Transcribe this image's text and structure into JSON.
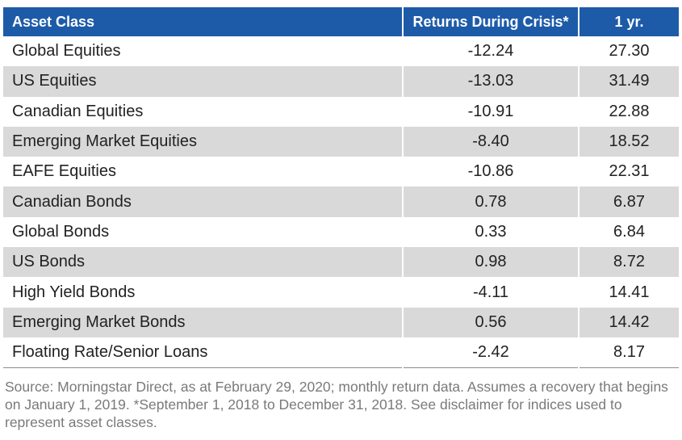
{
  "table": {
    "headers": [
      "Asset Class",
      "Returns During Crisis*",
      "1 yr."
    ],
    "rows": [
      [
        "Global Equities",
        "-12.24",
        "27.30"
      ],
      [
        "US Equities",
        "-13.03",
        "31.49"
      ],
      [
        "Canadian Equities",
        "-10.91",
        "22.88"
      ],
      [
        "Emerging Market Equities",
        "-8.40",
        "18.52"
      ],
      [
        "EAFE Equities",
        "-10.86",
        "22.31"
      ],
      [
        "Canadian Bonds",
        "0.78",
        "6.87"
      ],
      [
        "Global Bonds",
        "0.33",
        "6.84"
      ],
      [
        "US Bonds",
        "0.98",
        "8.72"
      ],
      [
        "High Yield Bonds",
        "-4.11",
        "14.41"
      ],
      [
        "Emerging Market Bonds",
        "0.56",
        "14.42"
      ],
      [
        "Floating Rate/Senior Loans",
        "-2.42",
        "8.17"
      ]
    ]
  },
  "footnote": "Source: Morningstar Direct, as at February 29, 2020; monthly return data. Assumes a recovery that begins on January 1, 2019. *September 1, 2018 to December 31, 2018. See disclaimer for indices used to represent asset classes.",
  "colors": {
    "header_bg": "#1d5ba8",
    "stripe_bg": "#d9d9d9",
    "footnote_text": "#7a7a7a"
  }
}
